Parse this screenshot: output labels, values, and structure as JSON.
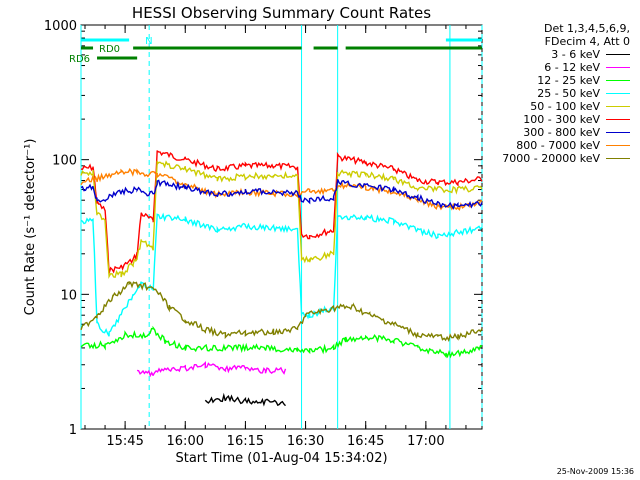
{
  "chart_data": {
    "type": "line",
    "title": "HESSI Observing Summary Count Rates",
    "xlabel": "Start Time (01-Aug-04 15:34:02)",
    "ylabel": "Count Rate (s⁻¹ detector⁻¹)",
    "y_scale": "log",
    "ylim": [
      1,
      1000
    ],
    "yticks": [
      "1",
      "10",
      "100",
      "1000"
    ],
    "xlim": [
      "15:34",
      "17:14"
    ],
    "xticks": [
      "15:45",
      "16:00",
      "16:15",
      "16:30",
      "16:45",
      "17:00"
    ],
    "legend": {
      "placement": "right",
      "header": [
        "Det 1,3,4,5,6,9,",
        "FDecim 4, Att 0"
      ],
      "entries": [
        {
          "label": "3 - 6 keV",
          "color": "#000000"
        },
        {
          "label": "6 - 12 keV",
          "color": "#ff00ff"
        },
        {
          "label": "12 - 25 keV",
          "color": "#00ff00"
        },
        {
          "label": "25 - 50 keV",
          "color": "#00ffff"
        },
        {
          "label": "50 - 100 keV",
          "color": "#cccc00"
        },
        {
          "label": "100 - 300 keV",
          "color": "#ff0000"
        },
        {
          "label": "300 - 800 keV",
          "color": "#0000cc"
        },
        {
          "label": "800 - 7000 keV",
          "color": "#ff8000"
        },
        {
          "label": "7000 - 20000 keV",
          "color": "#808000"
        }
      ]
    },
    "annotations": {
      "flags": [
        {
          "label": "N",
          "color": "#00ffff",
          "segments": [
            [
              "15:34",
              "15:46"
            ],
            [
              "17:05",
              "17:14"
            ]
          ]
        },
        {
          "label": "RD0",
          "color": "#008000",
          "segments": [
            [
              "15:34",
              "15:37"
            ],
            [
              "15:47",
              "16:29"
            ],
            [
              "16:32",
              "16:38"
            ],
            [
              "16:40",
              "17:14"
            ]
          ]
        },
        {
          "label": "RD6",
          "color": "#008000",
          "segments": [
            [
              "15:38",
              "15:48"
            ]
          ]
        }
      ],
      "cyan_vlines": [
        "15:34",
        "16:29",
        "16:38",
        "17:06"
      ],
      "cyan_dashed_vlines": [
        "15:51",
        "17:14"
      ]
    },
    "series": [
      {
        "name": "100 - 300 keV",
        "color": "#ff0000",
        "points": [
          [
            "15:34",
            85
          ],
          [
            "15:37",
            88
          ],
          [
            "15:38",
            48
          ],
          [
            "15:40",
            42
          ],
          [
            "15:41",
            15
          ],
          [
            "15:44",
            16
          ],
          [
            "15:47",
            18
          ],
          [
            "15:48",
            20
          ],
          [
            "15:49",
            40
          ],
          [
            "15:52",
            35
          ],
          [
            "15:53",
            115
          ],
          [
            "16:00",
            100
          ],
          [
            "16:08",
            85
          ],
          [
            "16:15",
            90
          ],
          [
            "16:22",
            90
          ],
          [
            "16:28",
            88
          ],
          [
            "16:29",
            28
          ],
          [
            "16:31",
            27
          ],
          [
            "16:37",
            30
          ],
          [
            "16:38",
            105
          ],
          [
            "16:45",
            95
          ],
          [
            "16:52",
            85
          ],
          [
            "16:58",
            70
          ],
          [
            "17:03",
            68
          ],
          [
            "17:08",
            68
          ],
          [
            "17:14",
            72
          ]
        ]
      },
      {
        "name": "50 - 100 keV",
        "color": "#cccc00",
        "points": [
          [
            "15:34",
            78
          ],
          [
            "15:37",
            80
          ],
          [
            "15:38",
            40
          ],
          [
            "15:40",
            35
          ],
          [
            "15:41",
            14
          ],
          [
            "15:44",
            14
          ],
          [
            "15:47",
            17
          ],
          [
            "15:48",
            19
          ],
          [
            "15:49",
            25
          ],
          [
            "15:52",
            22
          ],
          [
            "15:53",
            95
          ],
          [
            "16:00",
            85
          ],
          [
            "16:08",
            72
          ],
          [
            "16:15",
            75
          ],
          [
            "16:22",
            76
          ],
          [
            "16:28",
            75
          ],
          [
            "16:29",
            18
          ],
          [
            "16:31",
            18
          ],
          [
            "16:37",
            20
          ],
          [
            "16:38",
            80
          ],
          [
            "16:45",
            78
          ],
          [
            "16:52",
            72
          ],
          [
            "16:58",
            62
          ],
          [
            "17:03",
            60
          ],
          [
            "17:08",
            60
          ],
          [
            "17:14",
            62
          ]
        ]
      },
      {
        "name": "800 - 7000 keV",
        "color": "#ff8000",
        "points": [
          [
            "15:34",
            68
          ],
          [
            "15:38",
            72
          ],
          [
            "15:44",
            82
          ],
          [
            "15:48",
            80
          ],
          [
            "15:53",
            78
          ],
          [
            "16:00",
            65
          ],
          [
            "16:08",
            55
          ],
          [
            "16:15",
            57
          ],
          [
            "16:22",
            56
          ],
          [
            "16:28",
            56
          ],
          [
            "16:31",
            58
          ],
          [
            "16:37",
            60
          ],
          [
            "16:38",
            65
          ],
          [
            "16:45",
            62
          ],
          [
            "16:52",
            58
          ],
          [
            "16:58",
            50
          ],
          [
            "17:03",
            45
          ],
          [
            "17:08",
            44
          ],
          [
            "17:14",
            48
          ]
        ]
      },
      {
        "name": "300 - 800 keV",
        "color": "#0000cc",
        "points": [
          [
            "15:34",
            60
          ],
          [
            "15:37",
            62
          ],
          [
            "15:38",
            50
          ],
          [
            "15:40",
            52
          ],
          [
            "15:44",
            58
          ],
          [
            "15:48",
            60
          ],
          [
            "15:52",
            55
          ],
          [
            "15:53",
            68
          ],
          [
            "16:00",
            62
          ],
          [
            "16:08",
            55
          ],
          [
            "16:15",
            58
          ],
          [
            "16:22",
            58
          ],
          [
            "16:28",
            56
          ],
          [
            "16:29",
            50
          ],
          [
            "16:31",
            50
          ],
          [
            "16:37",
            52
          ],
          [
            "16:38",
            68
          ],
          [
            "16:45",
            64
          ],
          [
            "16:52",
            60
          ],
          [
            "16:58",
            52
          ],
          [
            "17:03",
            47
          ],
          [
            "17:08",
            45
          ],
          [
            "17:14",
            47
          ]
        ]
      },
      {
        "name": "25 - 50 keV",
        "color": "#00ffff",
        "points": [
          [
            "15:34",
            35
          ],
          [
            "15:37",
            36
          ],
          [
            "15:38",
            6
          ],
          [
            "15:41",
            5
          ],
          [
            "15:44",
            7
          ],
          [
            "15:47",
            10
          ],
          [
            "15:49",
            12
          ],
          [
            "15:52",
            11
          ],
          [
            "15:53",
            38
          ],
          [
            "16:00",
            36
          ],
          [
            "16:08",
            30
          ],
          [
            "16:15",
            32
          ],
          [
            "16:22",
            31
          ],
          [
            "16:28",
            30
          ],
          [
            "16:29",
            7
          ],
          [
            "16:31",
            7
          ],
          [
            "16:37",
            8
          ],
          [
            "16:38",
            38
          ],
          [
            "16:45",
            37
          ],
          [
            "16:52",
            35
          ],
          [
            "16:58",
            30
          ],
          [
            "17:03",
            27
          ],
          [
            "17:08",
            29
          ],
          [
            "17:14",
            31
          ]
        ]
      },
      {
        "name": "7000 - 20000 keV",
        "color": "#808000",
        "points": [
          [
            "15:34",
            5.5
          ],
          [
            "15:38",
            7
          ],
          [
            "15:42",
            9.5
          ],
          [
            "15:46",
            12
          ],
          [
            "15:50",
            11.5
          ],
          [
            "15:53",
            10.5
          ],
          [
            "15:56",
            8
          ],
          [
            "16:00",
            6.5
          ],
          [
            "16:05",
            5.5
          ],
          [
            "16:10",
            5
          ],
          [
            "16:15",
            5.2
          ],
          [
            "16:22",
            5.3
          ],
          [
            "16:28",
            5.5
          ],
          [
            "16:30",
            7
          ],
          [
            "16:34",
            7.5
          ],
          [
            "16:38",
            8
          ],
          [
            "16:42",
            8
          ],
          [
            "16:46",
            7
          ],
          [
            "16:52",
            6
          ],
          [
            "16:58",
            5
          ],
          [
            "17:03",
            4.8
          ],
          [
            "17:08",
            4.8
          ],
          [
            "17:14",
            5.5
          ]
        ]
      },
      {
        "name": "12 - 25 keV",
        "color": "#00ff00",
        "points": [
          [
            "15:34",
            4.2
          ],
          [
            "15:40",
            4.2
          ],
          [
            "15:45",
            5
          ],
          [
            "15:50",
            5
          ],
          [
            "15:52",
            5.4
          ],
          [
            "15:55",
            4.5
          ],
          [
            "16:00",
            4
          ],
          [
            "16:10",
            4
          ],
          [
            "16:20",
            4
          ],
          [
            "16:28",
            3.8
          ],
          [
            "16:31",
            3.8
          ],
          [
            "16:37",
            4
          ],
          [
            "16:40",
            4.6
          ],
          [
            "16:45",
            4.8
          ],
          [
            "16:52",
            4.6
          ],
          [
            "16:58",
            4
          ],
          [
            "17:05",
            3.6
          ],
          [
            "17:10",
            3.7
          ],
          [
            "17:14",
            4
          ]
        ]
      },
      {
        "name": "6 - 12 keV",
        "color": "#ff00ff",
        "points": [
          [
            "15:48",
            2.6
          ],
          [
            "15:52",
            2.6
          ],
          [
            "15:56",
            2.8
          ],
          [
            "16:00",
            2.8
          ],
          [
            "16:05",
            3
          ],
          [
            "16:10",
            2.8
          ],
          [
            "16:15",
            2.9
          ],
          [
            "16:20",
            2.7
          ],
          [
            "16:25",
            2.7
          ]
        ]
      },
      {
        "name": "3 - 6 keV",
        "color": "#000000",
        "points": [
          [
            "16:05",
            1.6
          ],
          [
            "16:10",
            1.7
          ],
          [
            "16:15",
            1.6
          ],
          [
            "16:20",
            1.6
          ],
          [
            "16:25",
            1.5
          ]
        ]
      }
    ],
    "grid": false
  },
  "footer": "25-Nov-2009 15:36"
}
